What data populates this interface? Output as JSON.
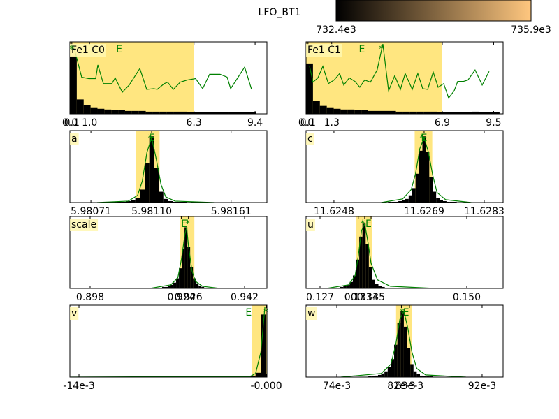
{
  "colorbar": {
    "label": "LFO_BT1",
    "lim": [
      732400,
      735900
    ],
    "ticks": [
      {
        "value": 732400,
        "label": "732.4e3"
      },
      {
        "value": 735900,
        "label": "735.9e3"
      }
    ],
    "colors": [
      "#000000",
      "#ffc77f"
    ]
  },
  "chart_data": [
    {
      "type": "histogram",
      "title": "Fe1 C0",
      "color": "#000000",
      "interval_color": "#ffe680",
      "line_color": "#008000",
      "xlim": [
        0,
        10
      ],
      "ylim": [
        0,
        100
      ],
      "xticks": [
        {
          "value": 0,
          "label": "0.0"
        },
        {
          "value": 0.1,
          "label": "0.1"
        },
        {
          "value": 1.0,
          "label": "1.0"
        },
        {
          "value": 6.3,
          "label": "6.3"
        },
        {
          "value": 9.4,
          "label": "9.4"
        }
      ],
      "interval": [
        0,
        6.3
      ],
      "bins": [
        0,
        0.35,
        0.7,
        1.05,
        1.4,
        1.75,
        2.1,
        2.45,
        2.8,
        3.15,
        3.5,
        3.85,
        4.2,
        4.55,
        4.9,
        5.25,
        5.6,
        5.95,
        6.3,
        6.65,
        7.0,
        7.35,
        7.7,
        8.05,
        8.4,
        8.75,
        9.1,
        9.45
      ],
      "values": [
        80,
        20,
        12,
        9,
        7,
        6,
        5,
        5,
        4,
        4,
        4,
        3,
        3,
        3,
        3,
        3,
        3,
        2,
        2,
        2,
        2,
        2,
        2,
        2,
        2,
        2,
        2
      ],
      "line": {
        "x": [
          0.18,
          0.6,
          0.96,
          1.31,
          1.42,
          1.7,
          2.13,
          2.3,
          2.66,
          3.01,
          3.55,
          3.9,
          4.26,
          4.43,
          4.79,
          4.96,
          5.25,
          5.6,
          5.96,
          6.38,
          6.74,
          7.09,
          7.62,
          7.98,
          8.16,
          8.87,
          9.22
        ],
        "values": [
          95,
          51,
          49,
          49,
          68,
          42,
          42,
          50,
          30,
          40,
          63,
          34,
          35,
          34,
          42,
          44,
          34,
          44,
          47,
          49,
          35,
          55,
          55,
          51,
          35,
          65,
          34
        ]
      },
      "markers": [
        {
          "label": "E",
          "x": 2.5
        },
        {
          "label": "*",
          "x": 0.1
        }
      ]
    },
    {
      "type": "histogram",
      "title": "Fe1 C1",
      "color": "#000000",
      "interval_color": "#ffe680",
      "line_color": "#008000",
      "xlim": [
        0,
        9.98
      ],
      "ylim": [
        0,
        100
      ],
      "xticks": [
        {
          "value": 0,
          "label": "0.0"
        },
        {
          "value": 0.1,
          "label": "0.1"
        },
        {
          "value": 1.3,
          "label": "1.3"
        },
        {
          "value": 6.9,
          "label": "6.9"
        },
        {
          "value": 9.5,
          "label": "9.5"
        }
      ],
      "interval": [
        0,
        6.9
      ],
      "bins": [
        0,
        0.35,
        0.7,
        1.05,
        1.4,
        1.75,
        2.1,
        2.45,
        2.8,
        3.15,
        3.5,
        3.85,
        4.2,
        4.55,
        4.9,
        5.25,
        5.6,
        5.95,
        6.3,
        6.65,
        7.0,
        7.35,
        7.7,
        8.05,
        8.4,
        8.75,
        9.1,
        9.45,
        9.8
      ],
      "values": [
        70,
        18,
        11,
        9,
        7,
        6,
        6,
        5,
        5,
        4,
        4,
        4,
        4,
        3,
        3,
        3,
        3,
        3,
        3,
        2,
        2,
        2,
        2,
        2,
        3,
        2,
        2,
        2
      ],
      "line": {
        "x": [
          0.18,
          0.35,
          0.6,
          0.85,
          1.13,
          1.42,
          1.7,
          1.91,
          2.19,
          2.48,
          2.72,
          2.97,
          3.26,
          3.6,
          3.89,
          4.18,
          4.49,
          4.78,
          5.02,
          5.38,
          5.66,
          5.91,
          6.16,
          6.44,
          6.69,
          6.97,
          7.22,
          7.5,
          7.68,
          7.96,
          8.2,
          8.56,
          8.92,
          9.27
        ],
        "values": [
          66,
          44,
          50,
          66,
          42,
          47,
          56,
          40,
          50,
          45,
          37,
          47,
          44,
          61,
          97,
          32,
          53,
          34,
          56,
          34,
          56,
          35,
          34,
          58,
          37,
          42,
          22,
          32,
          45,
          45,
          47,
          61,
          40,
          59
        ]
      },
      "markers": [
        {
          "label": "E",
          "x": 2.83
        },
        {
          "label": "*",
          "x": 3.82
        }
      ]
    },
    {
      "type": "histogram",
      "title": "a",
      "color": "#000000",
      "interval_color": "#ffe680",
      "line_color": "#008000",
      "xlim": [
        5.980575,
        5.98184
      ],
      "ylim": [
        0,
        100
      ],
      "xticks": [
        5.98071,
        {
          "value": 5.9811,
          "label": "5.98110"
        },
        5.98161
      ],
      "interval": [
        5.980997,
        5.981151
      ],
      "bins": [
        5.980785,
        5.980815,
        5.980845,
        5.980875,
        5.980905,
        5.980935,
        5.980965,
        5.980995,
        5.981025,
        5.981055,
        5.981085,
        5.981115,
        5.981145,
        5.981175,
        5.981205,
        5.981235,
        5.981265,
        5.981295,
        5.981325,
        5.981355,
        5.981385
      ],
      "values": [
        1,
        0,
        1,
        1,
        1,
        2,
        3,
        6,
        18,
        55,
        92,
        48,
        15,
        5,
        2,
        1,
        1,
        1,
        0,
        1
      ],
      "line": {
        "x": [
          5.98075,
          5.98095,
          5.98101,
          5.98104,
          5.98107,
          5.9811,
          5.98113,
          5.98116,
          5.98119,
          5.98125,
          5.9815
        ],
        "values": [
          0,
          2,
          10,
          30,
          70,
          90,
          60,
          25,
          8,
          2,
          0
        ]
      },
      "markers": [
        {
          "label": "E",
          "x": 5.9811
        },
        {
          "label": "*",
          "x": 5.981091
        }
      ]
    },
    {
      "type": "histogram",
      "title": "c",
      "color": "#000000",
      "interval_color": "#ffe680",
      "line_color": "#008000",
      "xlim": [
        11.62415,
        11.62874
      ],
      "ylim": [
        0,
        100
      ],
      "xticks": [
        11.6248,
        11.6269,
        11.6283
      ],
      "interval": [
        11.62668,
        11.62709
      ],
      "bins": [
        11.62606,
        11.62614,
        11.62622,
        11.6263,
        11.62638,
        11.62646,
        11.62654,
        11.62662,
        11.6267,
        11.62678,
        11.62686,
        11.62694,
        11.62702,
        11.6271,
        11.62718,
        11.62726,
        11.62734,
        11.62742,
        11.6275,
        11.62758,
        11.62766
      ],
      "values": [
        1,
        1,
        1,
        2,
        3,
        5,
        10,
        20,
        40,
        72,
        92,
        70,
        35,
        15,
        6,
        3,
        2,
        1,
        1,
        1
      ],
      "line": {
        "x": [
          11.6259,
          11.6264,
          11.6266,
          11.6267,
          11.6268,
          11.6269,
          11.627,
          11.6271,
          11.6272,
          11.6274,
          11.628
        ],
        "values": [
          0,
          5,
          18,
          40,
          75,
          90,
          70,
          38,
          14,
          4,
          0
        ]
      },
      "markers": [
        {
          "label": "E",
          "x": 11.6269
        },
        {
          "label": "*",
          "x": 11.62685
        }
      ]
    },
    {
      "type": "histogram",
      "title": "scale",
      "color": "#000000",
      "interval_color": "#ffe680",
      "line_color": "#008000",
      "xlim": [
        0.89223,
        0.94837
      ],
      "ylim": [
        0,
        100
      ],
      "xticks": [
        0.898,
        0.924,
        0.926,
        0.942
      ],
      "interval": [
        0.9237,
        0.9277
      ],
      "bins": [
        0.9169,
        0.9177,
        0.9185,
        0.9193,
        0.9201,
        0.9209,
        0.9217,
        0.9225,
        0.9233,
        0.9241,
        0.9249,
        0.9257,
        0.9265,
        0.9273,
        0.9281,
        0.9289,
        0.9297,
        0.9305,
        0.9313,
        0.9321,
        0.9329
      ],
      "values": [
        1,
        1,
        2,
        2,
        3,
        5,
        8,
        14,
        28,
        55,
        85,
        58,
        30,
        14,
        7,
        3,
        2,
        1,
        1,
        1
      ],
      "line": {
        "x": [
          0.915,
          0.921,
          0.923,
          0.924,
          0.925,
          0.9255,
          0.926,
          0.927,
          0.928,
          0.93,
          0.935
        ],
        "values": [
          0,
          5,
          15,
          40,
          75,
          85,
          60,
          25,
          10,
          3,
          0
        ]
      },
      "markers": [
        {
          "label": "E",
          "x": 0.9248
        },
        {
          "label": "*",
          "x": 0.9258
        }
      ]
    },
    {
      "type": "histogram",
      "title": "u",
      "color": "#000000",
      "interval_color": "#ffe680",
      "line_color": "#008000",
      "xlim": [
        0.12481,
        0.1557
      ],
      "ylim": [
        0,
        100
      ],
      "xticks": [
        0.127,
        0.133,
        0.134,
        0.135,
        {
          "value": 0.15,
          "label": "0.150"
        }
      ],
      "interval": [
        0.1327,
        0.1352
      ],
      "bins": [
        0.12865,
        0.12915,
        0.12965,
        0.13015,
        0.13065,
        0.13115,
        0.13165,
        0.13215,
        0.13265,
        0.13315,
        0.13365,
        0.13415,
        0.13465,
        0.13515,
        0.13565,
        0.13615,
        0.13665,
        0.13715,
        0.13765,
        0.13815,
        0.13865
      ],
      "values": [
        1,
        1,
        1,
        2,
        3,
        5,
        9,
        18,
        40,
        72,
        90,
        62,
        30,
        12,
        6,
        3,
        2,
        1,
        1,
        1
      ],
      "line": {
        "x": [
          0.128,
          0.1315,
          0.1325,
          0.133,
          0.1335,
          0.134,
          0.1345,
          0.135,
          0.136,
          0.138,
          0.145
        ],
        "values": [
          0,
          5,
          18,
          45,
          80,
          90,
          65,
          35,
          12,
          3,
          0
        ]
      },
      "markers": [
        {
          "label": "*",
          "x": 0.1337
        },
        {
          "label": "E",
          "x": 0.1346
        }
      ]
    },
    {
      "type": "histogram",
      "title": "v",
      "color": "#000000",
      "interval_color": "#ffe680",
      "line_color": "#008000",
      "xlim": [
        -0.01468,
        5e-05
      ],
      "ylim": [
        0,
        100
      ],
      "xticks": [
        {
          "value": -0.014,
          "label": "-14e-3"
        },
        {
          "value": 0,
          "label": "-0.000"
        }
      ],
      "interval": [
        -0.00105,
        5e-05
      ],
      "bins": [
        -0.002,
        -0.0016,
        -0.0012,
        -0.0008,
        -0.0004,
        0
      ],
      "values": [
        1,
        1,
        2,
        6,
        87
      ],
      "line": {
        "x": [
          -0.0146,
          -0.0012,
          -0.0008,
          -0.0004,
          -0.0001
        ],
        "values": [
          0,
          1,
          5,
          35,
          98
        ]
      },
      "markers": [
        {
          "label": "E",
          "x": -0.00132
        },
        {
          "label": "*",
          "x": -2e-05
        }
      ]
    },
    {
      "type": "histogram",
      "title": "w",
      "color": "#000000",
      "interval_color": "#ffe680",
      "line_color": "#008000",
      "xlim": [
        0.07019,
        0.0946
      ],
      "ylim": [
        0,
        100
      ],
      "xticks": [
        {
          "value": 0.074,
          "label": "74e-3"
        },
        {
          "value": 0.082,
          "label": "82e-3"
        },
        {
          "value": 0.083,
          "label": "83e-3"
        },
        {
          "value": 0.092,
          "label": "92e-3"
        }
      ],
      "interval": [
        0.08134,
        0.08333
      ],
      "bins": [
        0.0779,
        0.0783,
        0.0787,
        0.0791,
        0.0795,
        0.0799,
        0.0803,
        0.0807,
        0.0811,
        0.0815,
        0.0819,
        0.0823,
        0.0827,
        0.0831,
        0.0835,
        0.0839,
        0.0843,
        0.0847,
        0.0851,
        0.0855,
        0.0859
      ],
      "values": [
        1,
        1,
        2,
        3,
        5,
        8,
        14,
        25,
        45,
        75,
        92,
        70,
        40,
        18,
        8,
        4,
        2,
        1,
        1,
        1
      ],
      "line": {
        "x": [
          0.0745,
          0.0795,
          0.0807,
          0.0813,
          0.0818,
          0.0823,
          0.0828,
          0.0833,
          0.0839,
          0.085,
          0.09
        ],
        "values": [
          0,
          5,
          18,
          45,
          80,
          92,
          68,
          35,
          12,
          3,
          0
        ]
      },
      "markers": [
        {
          "label": "*",
          "x": 0.08205
        },
        {
          "label": "E",
          "x": 0.08257
        }
      ]
    }
  ]
}
